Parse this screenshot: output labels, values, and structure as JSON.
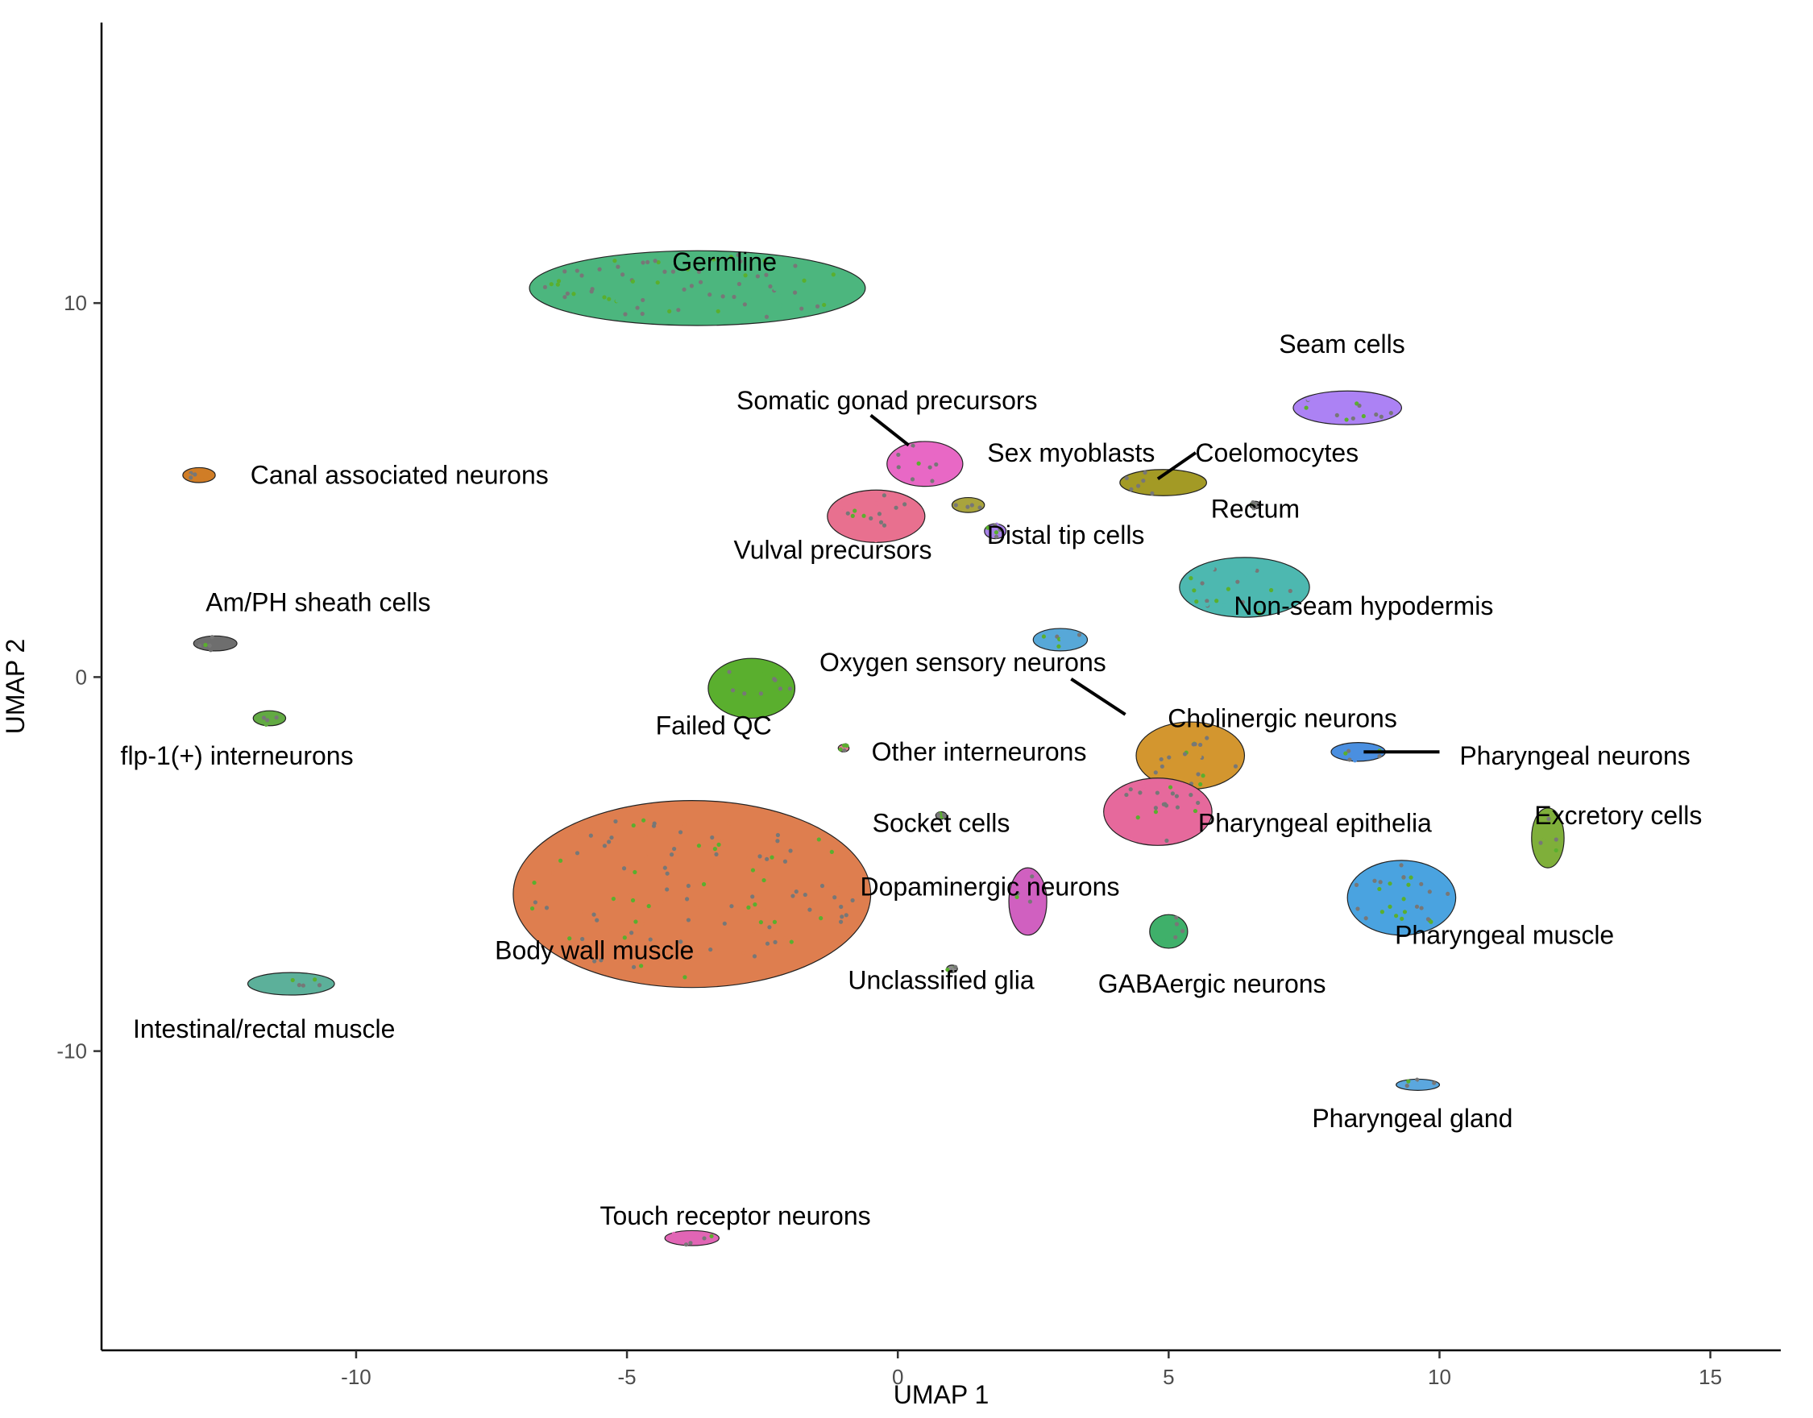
{
  "chart_data": {
    "type": "scatter",
    "title": "",
    "xlabel": "UMAP 1",
    "ylabel": "UMAP 2",
    "xlim": [
      -14.7,
      16.3
    ],
    "ylim": [
      -18.0,
      17.5
    ],
    "xticks": [
      {
        "value": -10,
        "label": "-10"
      },
      {
        "value": -5,
        "label": "-5"
      },
      {
        "value": 0,
        "label": "0"
      },
      {
        "value": 5,
        "label": "5"
      },
      {
        "value": 10,
        "label": "10"
      },
      {
        "value": 15,
        "label": "15"
      }
    ],
    "yticks": [
      {
        "value": 10,
        "label": "10"
      },
      {
        "value": 0,
        "label": "0"
      },
      {
        "value": -10,
        "label": "-10"
      }
    ],
    "grid": false,
    "legend": "none",
    "clusters": [
      {
        "label": "Germline",
        "color": "#4CB67E",
        "center": [
          -3.7,
          10.4
        ],
        "radii": [
          3.1,
          1.0
        ],
        "label_pos": [
          -3.2,
          11.1
        ]
      },
      {
        "label": "Body wall muscle",
        "color": "#DE7E4F",
        "center": [
          -3.8,
          -5.8
        ],
        "radii": [
          3.3,
          2.5
        ],
        "label_pos": [
          -5.6,
          -7.3
        ]
      },
      {
        "label": "Seam cells",
        "color": "#AC82F4",
        "center": [
          8.3,
          7.2
        ],
        "radii": [
          1.0,
          0.45
        ],
        "label_pos": [
          8.2,
          8.9
        ]
      },
      {
        "label": "Somatic gonad precursors",
        "color": "#E868C5",
        "center": [
          0.5,
          5.7
        ],
        "radii": [
          0.7,
          0.6
        ],
        "label_pos": [
          -0.2,
          7.4
        ],
        "leader": [
          [
            -0.5,
            7.0
          ],
          [
            0.2,
            6.2
          ]
        ]
      },
      {
        "label": "Sex myoblasts",
        "color": "#A9A43D",
        "center": [
          1.3,
          4.6
        ],
        "radii": [
          0.3,
          0.2
        ],
        "label_pos": [
          3.2,
          6.0
        ]
      },
      {
        "label": "Coelomocytes",
        "color": "#A39A25",
        "center": [
          4.9,
          5.2
        ],
        "radii": [
          0.8,
          0.35
        ],
        "label_pos": [
          7.0,
          6.0
        ],
        "leader": [
          [
            4.8,
            5.3
          ],
          [
            5.5,
            6.0
          ]
        ]
      },
      {
        "label": "Rectum",
        "color": "#7D7D7D",
        "center": [
          6.6,
          4.6
        ],
        "radii": [
          0.1,
          0.1
        ],
        "label_pos": [
          6.6,
          4.5
        ]
      },
      {
        "label": "Distal tip cells",
        "color": "#A782E8",
        "center": [
          1.8,
          3.9
        ],
        "radii": [
          0.2,
          0.2
        ],
        "label_pos": [
          3.1,
          3.8
        ]
      },
      {
        "label": "Vulval precursors",
        "color": "#E8708F",
        "center": [
          -0.4,
          4.3
        ],
        "radii": [
          0.9,
          0.7
        ],
        "label_pos": [
          -1.2,
          3.4
        ]
      },
      {
        "label": "Non-seam hypodermis",
        "color": "#4DB8B0",
        "center": [
          6.4,
          2.4
        ],
        "radii": [
          1.2,
          0.8
        ],
        "label_pos": [
          8.6,
          1.9
        ]
      },
      {
        "label": "Failed QC",
        "color": "#5AAF2E",
        "center": [
          -2.7,
          -0.3
        ],
        "radii": [
          0.8,
          0.8
        ],
        "label_pos": [
          -3.4,
          -1.3
        ]
      },
      {
        "label": "Am/PH sheath cells",
        "color": "#6E6E6E",
        "center": [
          -12.6,
          0.9
        ],
        "radii": [
          0.4,
          0.2
        ],
        "label_pos": [
          -10.7,
          2.0
        ]
      },
      {
        "label": "Canal associated neurons",
        "color": "#D07D26",
        "center": [
          -12.9,
          5.4
        ],
        "radii": [
          0.3,
          0.2
        ],
        "label_pos": [
          -9.2,
          5.4
        ]
      },
      {
        "label": "flp-1(+) interneurons",
        "color": "#62AA43",
        "center": [
          -11.6,
          -1.1
        ],
        "radii": [
          0.3,
          0.2
        ],
        "label_pos": [
          -12.2,
          -2.1
        ]
      },
      {
        "label": "Intestinal/rectal muscle",
        "color": "#5CB09A",
        "center": [
          -11.2,
          -8.2
        ],
        "radii": [
          0.8,
          0.3
        ],
        "label_pos": [
          -11.7,
          -9.4
        ]
      },
      {
        "label": "Touch receptor neurons",
        "color": "#E165B5",
        "center": [
          -3.8,
          -15.0
        ],
        "radii": [
          0.5,
          0.2
        ],
        "label_pos": [
          -3.0,
          -14.4
        ]
      },
      {
        "label": "Oxygen sensory neurons",
        "color": "#57A8D8",
        "center": [
          3.0,
          1.0
        ],
        "radii": [
          0.5,
          0.3
        ],
        "label_pos": [
          1.2,
          0.4
        ],
        "leader": [
          [
            3.2,
            -0.05
          ],
          [
            4.2,
            -1.0
          ]
        ]
      },
      {
        "label": "Other interneurons",
        "color": "#E07B93",
        "center": [
          -1.0,
          -1.9
        ],
        "radii": [
          0.1,
          0.1
        ],
        "label_pos": [
          1.5,
          -2.0
        ]
      },
      {
        "label": "Cholinergic neurons",
        "color": "#D3962F",
        "center": [
          5.4,
          -2.1
        ],
        "radii": [
          1.0,
          0.9
        ],
        "label_pos": [
          7.1,
          -1.1
        ]
      },
      {
        "label": "Pharyngeal neurons",
        "color": "#4A8FE0",
        "center": [
          8.5,
          -2.0
        ],
        "radii": [
          0.5,
          0.25
        ],
        "label_pos": [
          12.5,
          -2.1
        ],
        "leader": [
          [
            8.6,
            -2.0
          ],
          [
            10.0,
            -2.0
          ]
        ]
      },
      {
        "label": "Socket cells",
        "color": "#7C7C7C",
        "center": [
          0.8,
          -3.7
        ],
        "radii": [
          0.1,
          0.1
        ],
        "label_pos": [
          0.8,
          -3.9
        ]
      },
      {
        "label": "Pharyngeal epithelia",
        "color": "#E6699C",
        "center": [
          4.8,
          -3.6
        ],
        "radii": [
          1.0,
          0.9
        ],
        "label_pos": [
          7.7,
          -3.9
        ]
      },
      {
        "label": "Excretory cells",
        "color": "#7FAF3A",
        "center": [
          12.0,
          -4.3
        ],
        "radii": [
          0.3,
          0.8
        ],
        "label_pos": [
          13.3,
          -3.7
        ]
      },
      {
        "label": "Dopaminergic neurons",
        "color": "#D060C0",
        "center": [
          2.4,
          -6.0
        ],
        "radii": [
          0.35,
          0.9
        ],
        "label_pos": [
          1.7,
          -5.6
        ]
      },
      {
        "label": "Pharyngeal muscle",
        "color": "#4AA3E0",
        "center": [
          9.3,
          -5.9
        ],
        "radii": [
          1.0,
          1.0
        ],
        "label_pos": [
          11.2,
          -6.9
        ]
      },
      {
        "label": "Unclassified glia",
        "color": "#8C8C8C",
        "center": [
          1.0,
          -7.8
        ],
        "radii": [
          0.1,
          0.1
        ],
        "label_pos": [
          0.8,
          -8.1
        ]
      },
      {
        "label": "GABAergic neurons",
        "color": "#3FB06A",
        "center": [
          5.0,
          -6.8
        ],
        "radii": [
          0.35,
          0.45
        ],
        "label_pos": [
          5.8,
          -8.2
        ]
      },
      {
        "label": "Pharyngeal gland",
        "color": "#5BA7DE",
        "center": [
          9.6,
          -10.9
        ],
        "radii": [
          0.4,
          0.15
        ],
        "label_pos": [
          9.5,
          -11.8
        ]
      }
    ]
  }
}
